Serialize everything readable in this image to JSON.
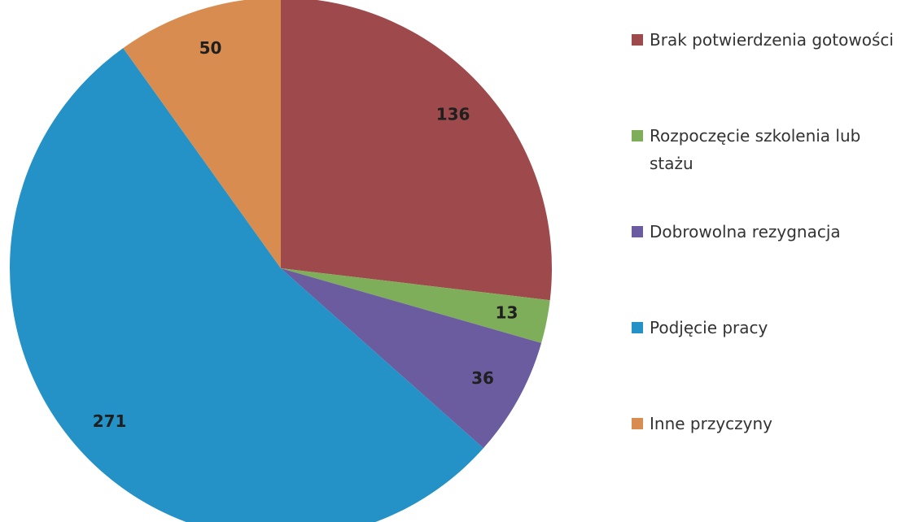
{
  "chart_data": {
    "type": "pie",
    "categories": [
      "Brak potwierdzenia gotowości",
      "Rozpoczęcie szkolenia lub stażu",
      "Dobrowolna rezygnacja",
      "Podjęcie pracy",
      "Inne przyczyny"
    ],
    "values": [
      136,
      13,
      36,
      271,
      50
    ],
    "colors": [
      "#9e4a4c",
      "#7fae5b",
      "#6b5b9f",
      "#2492c6",
      "#d98c4f"
    ],
    "legend": "right"
  }
}
